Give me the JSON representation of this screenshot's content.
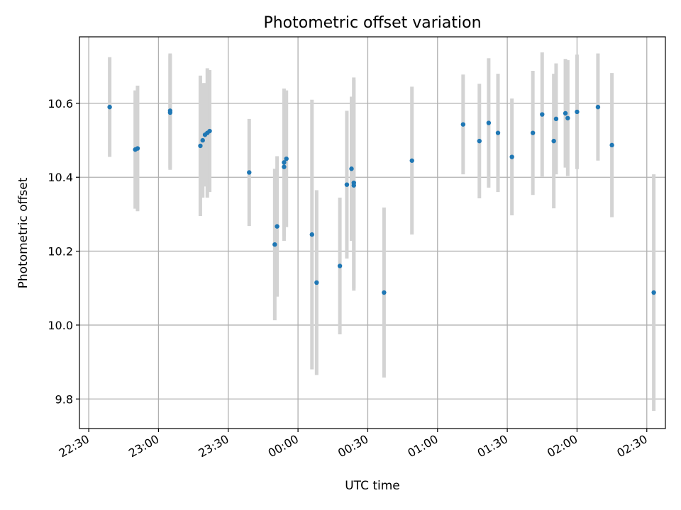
{
  "chart_data": {
    "type": "scatter",
    "title": "Photometric offset variation",
    "xlabel": "UTC time",
    "ylabel": "Photometric offset",
    "grid": true,
    "x_tick_labels": [
      "22:30",
      "23:00",
      "23:30",
      "00:00",
      "00:30",
      "01:00",
      "01:30",
      "02:00",
      "02:30"
    ],
    "y_ticks": [
      "9.8",
      "10.0",
      "10.2",
      "10.4",
      "10.6"
    ],
    "xlim": [
      "22:26",
      "02:38"
    ],
    "ylim": [
      9.72,
      10.78
    ],
    "point_color": "#1f77b4",
    "errorbar_color": "#d3d3d3",
    "points": [
      {
        "x": "22:39",
        "y": 10.59,
        "err": 0.135
      },
      {
        "x": "22:50",
        "y": 10.475,
        "err": 0.16
      },
      {
        "x": "22:51",
        "y": 10.478,
        "err": 0.17
      },
      {
        "x": "23:05",
        "y": 10.575,
        "err": 0.155
      },
      {
        "x": "23:05",
        "y": 10.58,
        "err": 0.155
      },
      {
        "x": "23:18",
        "y": 10.485,
        "err": 0.19
      },
      {
        "x": "23:19",
        "y": 10.5,
        "err": 0.155
      },
      {
        "x": "23:20",
        "y": 10.515,
        "err": 0.14
      },
      {
        "x": "23:21",
        "y": 10.52,
        "err": 0.175
      },
      {
        "x": "23:22",
        "y": 10.525,
        "err": 0.165
      },
      {
        "x": "23:39",
        "y": 10.413,
        "err": 0.145
      },
      {
        "x": "23:50",
        "y": 10.218,
        "err": 0.205
      },
      {
        "x": "23:51",
        "y": 10.267,
        "err": 0.19
      },
      {
        "x": "23:54",
        "y": 10.428,
        "err": 0.2
      },
      {
        "x": "23:54",
        "y": 10.44,
        "err": 0.2
      },
      {
        "x": "23:55",
        "y": 10.45,
        "err": 0.185
      },
      {
        "x": "00:06",
        "y": 10.245,
        "err": 0.365
      },
      {
        "x": "00:08",
        "y": 10.115,
        "err": 0.25
      },
      {
        "x": "00:18",
        "y": 10.16,
        "err": 0.185
      },
      {
        "x": "00:21",
        "y": 10.38,
        "err": 0.2
      },
      {
        "x": "00:23",
        "y": 10.423,
        "err": 0.195
      },
      {
        "x": "00:24",
        "y": 10.385,
        "err": 0.285
      },
      {
        "x": "00:24",
        "y": 10.378,
        "err": 0.285
      },
      {
        "x": "00:37",
        "y": 10.088,
        "err": 0.23
      },
      {
        "x": "00:49",
        "y": 10.445,
        "err": 0.2
      },
      {
        "x": "01:11",
        "y": 10.543,
        "err": 0.135
      },
      {
        "x": "01:18",
        "y": 10.498,
        "err": 0.155
      },
      {
        "x": "01:22",
        "y": 10.547,
        "err": 0.175
      },
      {
        "x": "01:26",
        "y": 10.52,
        "err": 0.16
      },
      {
        "x": "01:32",
        "y": 10.455,
        "err": 0.158
      },
      {
        "x": "01:41",
        "y": 10.52,
        "err": 0.168
      },
      {
        "x": "01:45",
        "y": 10.57,
        "err": 0.168
      },
      {
        "x": "01:50",
        "y": 10.498,
        "err": 0.182
      },
      {
        "x": "01:51",
        "y": 10.558,
        "err": 0.15
      },
      {
        "x": "01:55",
        "y": 10.573,
        "err": 0.147
      },
      {
        "x": "01:56",
        "y": 10.56,
        "err": 0.157
      },
      {
        "x": "02:00",
        "y": 10.577,
        "err": 0.155
      },
      {
        "x": "02:09",
        "y": 10.59,
        "err": 0.145
      },
      {
        "x": "02:15",
        "y": 10.487,
        "err": 0.195
      },
      {
        "x": "02:33",
        "y": 10.088,
        "err": 0.32
      }
    ]
  }
}
